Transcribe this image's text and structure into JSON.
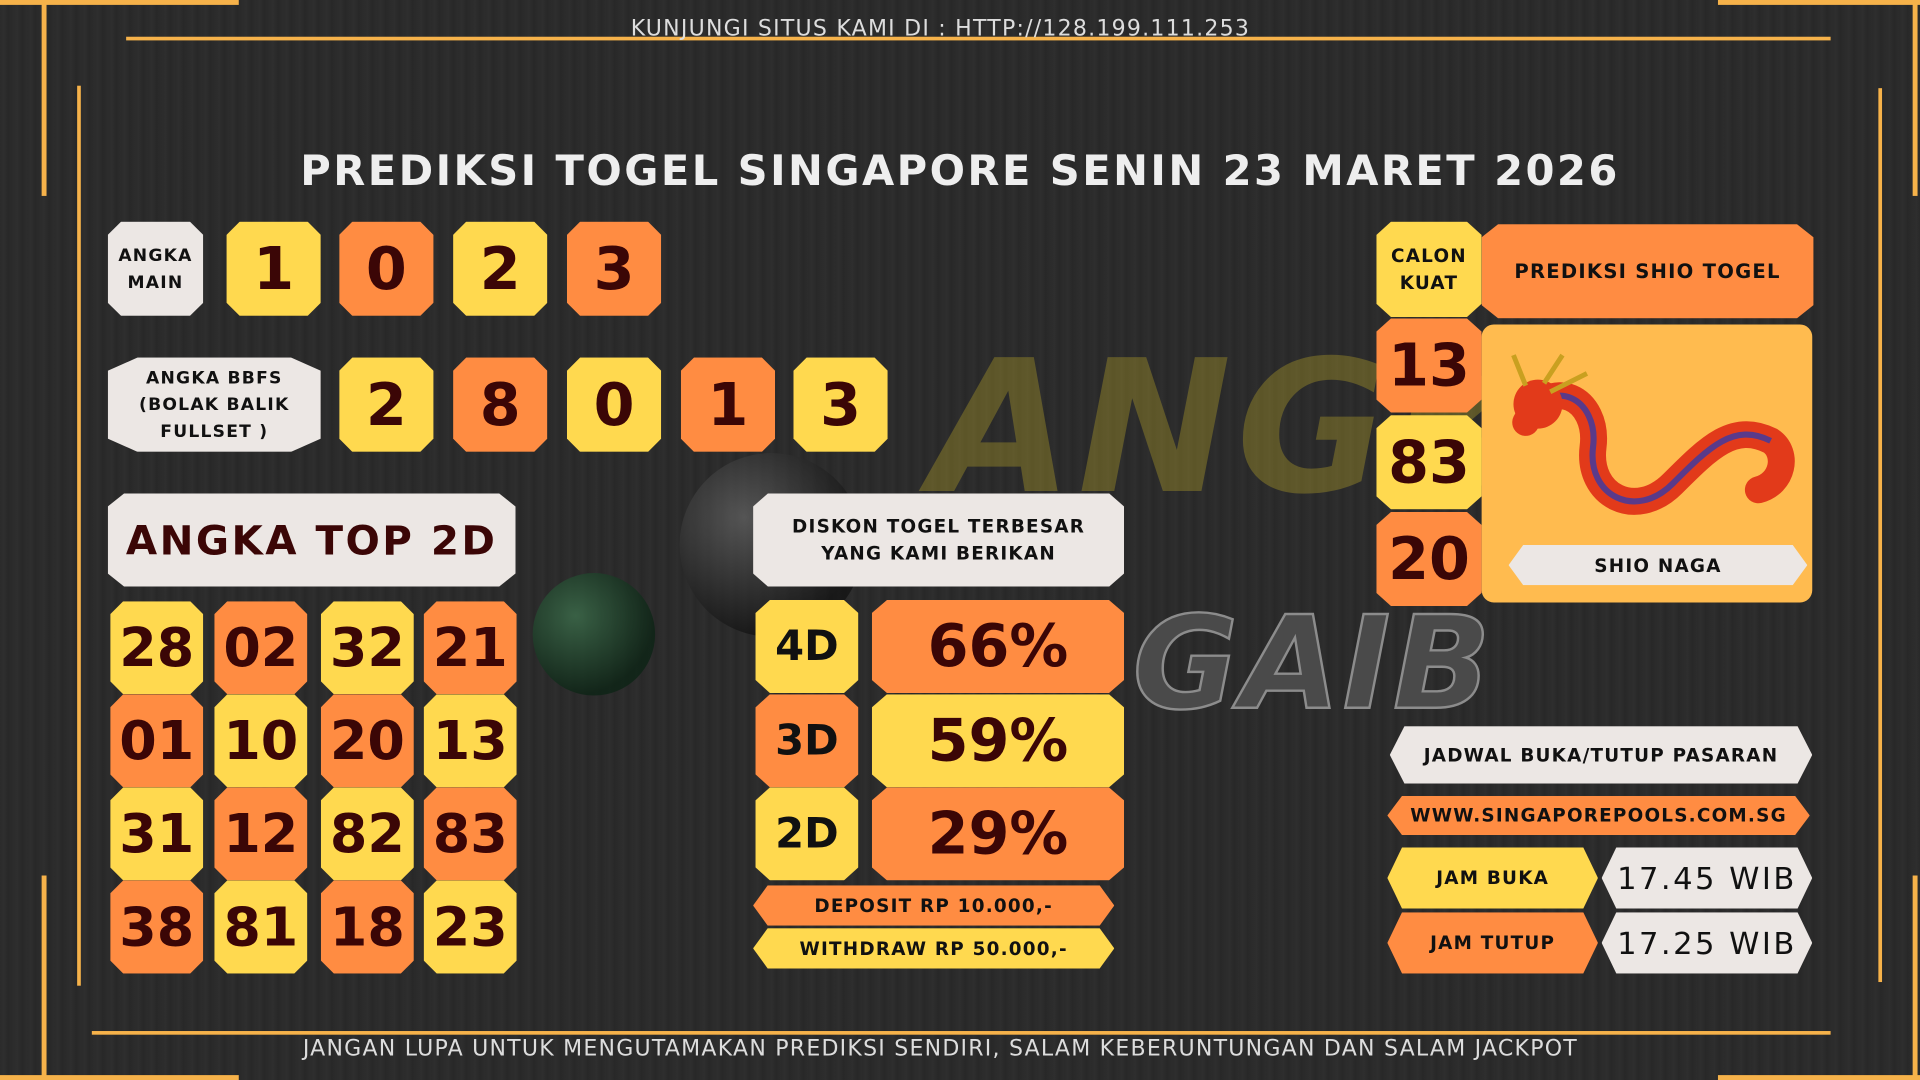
{
  "header": {
    "visit_text": "KUNJUNGI SITUS KAMI DI : HTTP://128.199.111.253",
    "title": "PREDIKSI TOGEL SINGAPORE SENIN 23 MARET 2026"
  },
  "watermark": {
    "line1": "ANGKA",
    "line2": "GAIB"
  },
  "angka_main": {
    "label": "ANGKA MAIN",
    "numbers": [
      "1",
      "0",
      "2",
      "3"
    ]
  },
  "bbfs": {
    "label": "ANGKA BBFS (BOLAK BALIK FULLSET )",
    "numbers": [
      "2",
      "8",
      "0",
      "1",
      "3"
    ]
  },
  "top2d": {
    "label": "ANGKA TOP 2D",
    "rows": [
      [
        "28",
        "02",
        "32",
        "21"
      ],
      [
        "01",
        "10",
        "20",
        "13"
      ],
      [
        "31",
        "12",
        "82",
        "83"
      ],
      [
        "38",
        "81",
        "18",
        "23"
      ]
    ]
  },
  "diskon": {
    "label": "DISKON TOGEL TERBESAR YANG KAMI BERIKAN",
    "rows": [
      {
        "type": "4D",
        "value": "66%"
      },
      {
        "type": "3D",
        "value": "59%"
      },
      {
        "type": "2D",
        "value": "29%"
      }
    ],
    "deposit": "DEPOSIT RP 10.000,-",
    "withdraw": "WITHDRAW RP 50.000,-"
  },
  "calon": {
    "label": "CALON KUAT",
    "numbers": [
      "13",
      "83",
      "20"
    ]
  },
  "shio": {
    "title": "PREDIKSI SHIO TOGEL",
    "name": "SHIO NAGA",
    "icon": "dragon-icon"
  },
  "jadwal": {
    "title": "JADWAL BUKA/TUTUP PASARAN",
    "site": "WWW.SINGAPOREPOOLS.COM.SG",
    "buka_label": "JAM BUKA",
    "buka_time": "17.45 WIB",
    "tutup_label": "JAM TUTUP",
    "tutup_time": "17.25 WIB"
  },
  "footer": {
    "text": "JANGAN LUPA UNTUK MENGUTAMAKAN PREDIKSI SENDIRI, SALAM KEBERUNTUNGAN DAN SALAM JACKPOT"
  },
  "colors": {
    "yellow": "#ffd94f",
    "orange": "#ff8c42",
    "background": "#2a2a2a",
    "accent_line": "#f6b24a"
  }
}
